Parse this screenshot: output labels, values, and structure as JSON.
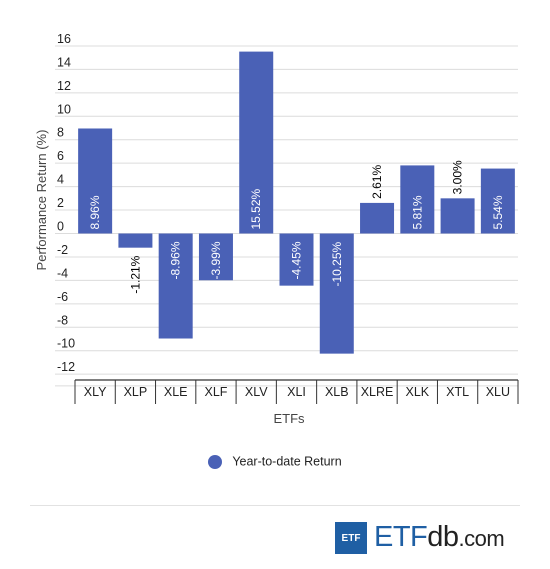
{
  "chart_data": {
    "type": "bar",
    "categories": [
      "XLY",
      "XLP",
      "XLE",
      "XLF",
      "XLV",
      "XLI",
      "XLB",
      "XLRE",
      "XLK",
      "XTL",
      "XLU"
    ],
    "series": [
      {
        "name": "Year-to-date Return",
        "values": [
          8.96,
          -1.21,
          -8.96,
          -3.99,
          15.52,
          -4.45,
          -10.25,
          2.61,
          5.81,
          3.0,
          5.54
        ],
        "labels": [
          "8.96%",
          "-1.21%",
          "-8.96%",
          "-3.99%",
          "15.52%",
          "-4.45%",
          "-10.25%",
          "2.61%",
          "5.81%",
          "3.00%",
          "5.54%"
        ]
      }
    ],
    "xlabel": "ETFs",
    "ylabel": "Performance Return (%)",
    "ylim": [
      -13,
      16
    ],
    "yticks": [
      16,
      14,
      12,
      10,
      8,
      6,
      4,
      2,
      0,
      -2,
      -4,
      -6,
      -8,
      -10,
      -12
    ],
    "grid": true,
    "legend_position": "bottom",
    "bar_color": "#4a61b6"
  },
  "legend": {
    "label": "Year-to-date Return"
  },
  "branding": {
    "badge": "ETF",
    "wordmark_a": "ETF",
    "wordmark_b": "db",
    "wordmark_c": ".com"
  }
}
